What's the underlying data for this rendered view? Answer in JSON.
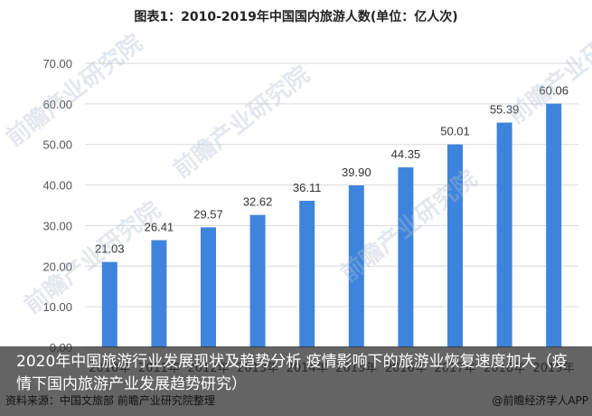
{
  "chart_data": {
    "type": "bar",
    "title": "图表1：2010-2019年中国国内旅游人数(单位：亿人次)",
    "categories": [
      "2010年",
      "2011年",
      "2012年",
      "2013年",
      "2014年",
      "2015年",
      "2016年",
      "2017年",
      "2018年",
      "2019年"
    ],
    "values": [
      21.03,
      26.41,
      29.57,
      32.62,
      36.11,
      39.9,
      44.35,
      50.01,
      55.39,
      60.06
    ],
    "value_labels": [
      "21.03",
      "26.41",
      "29.57",
      "32.62",
      "36.11",
      "39.90",
      "44.35",
      "50.01",
      "55.39",
      "60.06"
    ],
    "y_ticks": [
      "0.00",
      "10.00",
      "20.00",
      "30.00",
      "40.00",
      "50.00",
      "60.00",
      "70.00"
    ],
    "ylim": [
      0,
      70
    ],
    "grid": true,
    "bar_color": "#3E84DD"
  },
  "watermark": "前瞻产业研究院",
  "caption": "2020年中国旅游行业发展现状及趋势分析 疫情影响下的旅游业恢复速度加大（疫情下国内旅游产业发展趋势研究）",
  "source": "资料来源：中国文旅部 前瞻产业研究院整理",
  "brand": "@前瞻经济学人APP"
}
